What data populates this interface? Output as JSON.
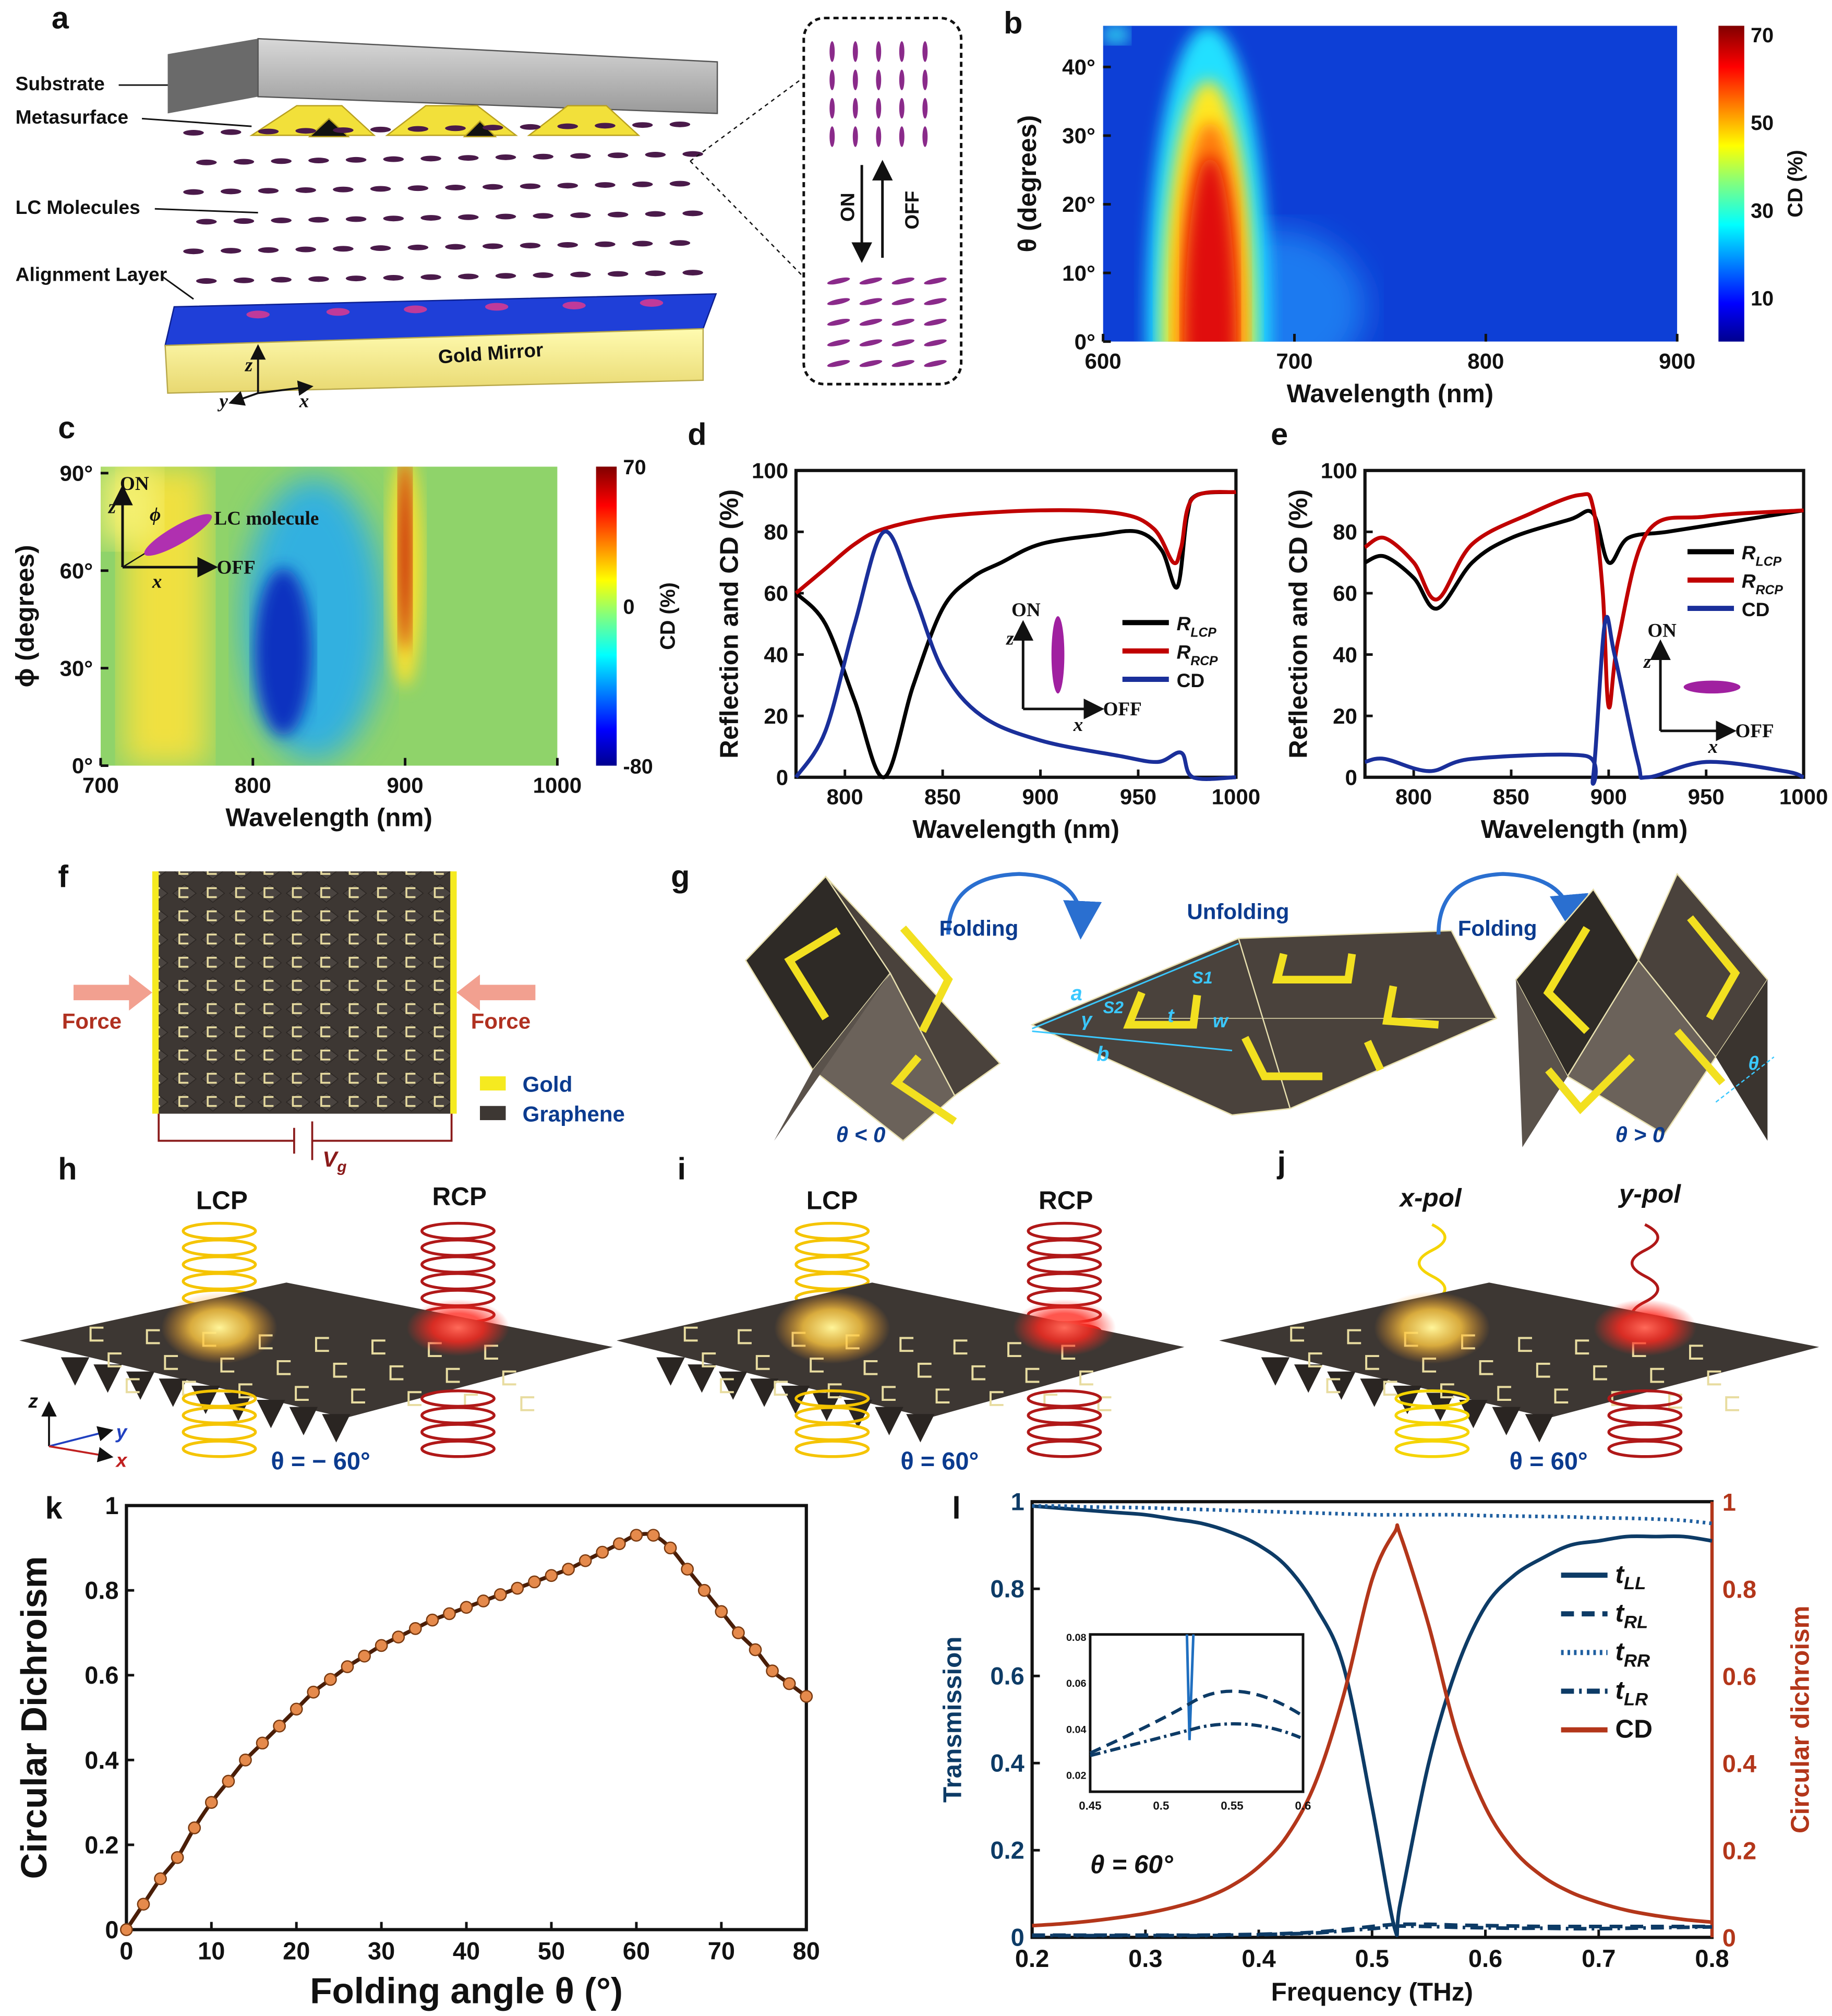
{
  "panel_labels": {
    "a": "a",
    "b": "b",
    "c": "c",
    "d": "d",
    "e": "e",
    "f": "f",
    "g": "g",
    "h": "h",
    "i": "i",
    "j": "j",
    "k": "k",
    "l": "l"
  },
  "panel_a": {
    "substrate": "Substrate",
    "metasurface": "Metasurface",
    "lc_molecules": "LC Molecules",
    "alignment_layer": "Alignment Layer",
    "gold_mirror": "Gold Mirror",
    "on": "ON",
    "off": "OFF",
    "axis_z": "z",
    "axis_y": "y",
    "axis_x": "x"
  },
  "panel_c_inset": {
    "on": "ON",
    "off": "OFF",
    "z": "z",
    "x": "x",
    "phi": "ϕ",
    "molecule": "LC molecule"
  },
  "panel_d_inset": {
    "on": "ON",
    "off": "OFF",
    "z": "z",
    "x": "x"
  },
  "panel_e_inset": {
    "on": "ON",
    "off": "OFF",
    "z": "z",
    "x": "x"
  },
  "panel_f": {
    "force_left": "Force",
    "force_right": "Force",
    "gold": "Gold",
    "graphene": "Graphene",
    "vg": "V",
    "vg_sub": "g"
  },
  "panel_g": {
    "folding_left": "Folding",
    "unfolding": "Unfolding",
    "folding_right": "Folding",
    "theta_neg": "θ < 0",
    "theta_pos": "θ > 0",
    "a": "a",
    "b": "b",
    "s1": "S1",
    "s2": "S2",
    "t": "t",
    "w": "w",
    "gamma": "γ",
    "theta": "θ"
  },
  "panel_h": {
    "lcp": "LCP",
    "rcp": "RCP",
    "theta": "θ = − 60°",
    "z": "z",
    "y": "y",
    "x": "x"
  },
  "panel_i": {
    "lcp": "LCP",
    "rcp": "RCP",
    "theta": "θ = 60°"
  },
  "panel_j": {
    "xpol": "x-pol",
    "ypol": "y-pol",
    "theta": "θ = 60°"
  },
  "colors": {
    "r_lcp": "#000000",
    "r_rcp": "#c00000",
    "cd_blue": "#1a2f9a",
    "k_line": "#4a1e08",
    "k_marker": "#e58a4c",
    "l_blue": "#0d3b66",
    "l_cd": "#b3361a"
  },
  "chart_data": [
    {
      "panel": "b",
      "type": "heatmap",
      "xlabel": "Wavelength (nm)",
      "ylabel": "θ (degrees)",
      "xlim": [
        600,
        900
      ],
      "ylim": [
        0,
        46
      ],
      "xticks": [
        600,
        700,
        800,
        900
      ],
      "xtick_labels": [
        "600",
        "700",
        "800",
        "900"
      ],
      "yticks": [
        0,
        10,
        20,
        30,
        40
      ],
      "ytick_labels": [
        "0°",
        "10°",
        "20°",
        "30°",
        "40°"
      ],
      "colorbar": {
        "label": "CD (%)",
        "range": [
          0,
          72
        ],
        "ticks": [
          10,
          30,
          50,
          70
        ],
        "tick_labels": [
          "10",
          "30",
          "50",
          "70"
        ]
      }
    },
    {
      "panel": "c",
      "type": "heatmap",
      "xlabel": "Wavelength (nm)",
      "ylabel": "ϕ (degrees)",
      "xlim": [
        700,
        1000
      ],
      "ylim": [
        0,
        92
      ],
      "xticks": [
        700,
        800,
        900,
        1000
      ],
      "xtick_labels": [
        "700",
        "800",
        "900",
        "1000"
      ],
      "yticks": [
        0,
        30,
        60,
        90
      ],
      "ytick_labels": [
        "0°",
        "30°",
        "60°",
        "90°"
      ],
      "colorbar": {
        "label": "CD (%)",
        "range": [
          -80,
          70
        ],
        "ticks": [
          -80,
          0,
          70
        ],
        "tick_labels": [
          "-80",
          "0",
          "70"
        ]
      }
    },
    {
      "panel": "d",
      "type": "line",
      "xlabel": "Wavelength (nm)",
      "ylabel": "Reflection and CD (%)",
      "xlim": [
        775,
        1000
      ],
      "ylim": [
        0,
        100
      ],
      "xticks": [
        800,
        850,
        900,
        950,
        1000
      ],
      "xtick_labels": [
        "800",
        "850",
        "900",
        "950",
        "1000"
      ],
      "yticks": [
        0,
        20,
        40,
        60,
        80,
        100
      ],
      "ytick_labels": [
        "0",
        "20",
        "40",
        "60",
        "80",
        "100"
      ],
      "series": [
        {
          "name": "R_LCP",
          "label": "R",
          "sub": "LCP",
          "color": "#000000",
          "x": [
            775,
            790,
            805,
            820,
            835,
            850,
            865,
            880,
            900,
            930,
            950,
            962,
            970,
            975,
            980,
            1000
          ],
          "y": [
            60,
            50,
            25,
            0,
            30,
            55,
            65,
            70,
            76,
            79,
            80,
            74,
            62,
            85,
            92,
            93
          ]
        },
        {
          "name": "R_RCP",
          "label": "R",
          "sub": "RCP",
          "color": "#c00000",
          "x": [
            775,
            790,
            805,
            820,
            850,
            900,
            940,
            958,
            968,
            972,
            978,
            1000
          ],
          "y": [
            60,
            68,
            76,
            81,
            85,
            87,
            86,
            81,
            70,
            75,
            91,
            93
          ]
        },
        {
          "name": "CD",
          "label": "CD",
          "sub": "",
          "color": "#1a2f9a",
          "x": [
            775,
            790,
            805,
            820,
            835,
            850,
            870,
            900,
            940,
            960,
            972,
            978,
            1000
          ],
          "y": [
            0,
            15,
            50,
            80,
            60,
            35,
            20,
            12,
            7,
            5,
            8,
            0,
            0
          ]
        }
      ]
    },
    {
      "panel": "e",
      "type": "line",
      "xlabel": "Wavelength (nm)",
      "ylabel": "Reflection and CD (%)",
      "xlim": [
        775,
        1000
      ],
      "ylim": [
        0,
        100
      ],
      "xticks": [
        800,
        850,
        900,
        950,
        1000
      ],
      "xtick_labels": [
        "800",
        "850",
        "900",
        "950",
        "1000"
      ],
      "yticks": [
        0,
        20,
        40,
        60,
        80,
        100
      ],
      "ytick_labels": [
        "0",
        "20",
        "40",
        "60",
        "80",
        "100"
      ],
      "series": [
        {
          "name": "R_LCP",
          "label": "R",
          "sub": "LCP",
          "color": "#000000",
          "x": [
            775,
            785,
            800,
            812,
            830,
            850,
            880,
            892,
            900,
            910,
            930,
            960,
            1000
          ],
          "y": [
            70,
            72,
            65,
            55,
            70,
            78,
            84,
            86,
            70,
            78,
            80,
            83,
            87
          ]
        },
        {
          "name": "R_RCP",
          "label": "R",
          "sub": "RCP",
          "color": "#c00000",
          "x": [
            775,
            785,
            800,
            812,
            830,
            860,
            885,
            892,
            897,
            900,
            905,
            920,
            950,
            1000
          ],
          "y": [
            75,
            78,
            70,
            58,
            76,
            86,
            92,
            88,
            60,
            23,
            45,
            80,
            85,
            87
          ]
        },
        {
          "name": "CD",
          "label": "CD",
          "sub": "",
          "color": "#1a2f9a",
          "x": [
            775,
            785,
            808,
            830,
            888,
            892,
            898,
            903,
            915,
            920,
            950,
            990,
            1000
          ],
          "y": [
            5,
            6,
            2,
            6,
            7,
            0,
            50,
            40,
            5,
            0,
            5,
            2,
            0
          ]
        }
      ]
    },
    {
      "panel": "k",
      "type": "line",
      "xlabel": "Folding angle θ (°)",
      "ylabel": "Circular Dichroism",
      "xlim": [
        0,
        80
      ],
      "ylim": [
        0,
        1
      ],
      "xticks": [
        0,
        10,
        20,
        30,
        40,
        50,
        60,
        70,
        80
      ],
      "xtick_labels": [
        "0",
        "10",
        "20",
        "30",
        "40",
        "50",
        "60",
        "70",
        "80"
      ],
      "yticks": [
        0,
        0.2,
        0.4,
        0.6,
        0.8,
        1
      ],
      "ytick_labels": [
        "0",
        "0.2",
        "0.4",
        "0.6",
        "0.8",
        "1"
      ],
      "series": [
        {
          "name": "CD",
          "color": "#4a1e08",
          "marker": "#e58a4c",
          "x": [
            0,
            2,
            4,
            6,
            8,
            10,
            12,
            14,
            16,
            18,
            20,
            22,
            24,
            26,
            28,
            30,
            32,
            34,
            36,
            38,
            40,
            42,
            44,
            46,
            48,
            50,
            52,
            54,
            56,
            58,
            60,
            62,
            64,
            66,
            68,
            70,
            72,
            74,
            76,
            78,
            80
          ],
          "y": [
            0,
            0.06,
            0.12,
            0.17,
            0.24,
            0.3,
            0.35,
            0.4,
            0.44,
            0.48,
            0.52,
            0.56,
            0.59,
            0.62,
            0.645,
            0.67,
            0.69,
            0.71,
            0.73,
            0.745,
            0.76,
            0.775,
            0.79,
            0.805,
            0.82,
            0.835,
            0.85,
            0.87,
            0.89,
            0.91,
            0.93,
            0.93,
            0.9,
            0.85,
            0.8,
            0.75,
            0.7,
            0.66,
            0.61,
            0.58,
            0.55
          ]
        }
      ]
    },
    {
      "panel": "l",
      "type": "line",
      "xlabel": "Frequency (THz)",
      "ylabel": "Transmission",
      "y2label": "Circular dichroism",
      "xlim": [
        0.2,
        0.8
      ],
      "ylim": [
        0,
        1
      ],
      "y2lim": [
        0,
        1
      ],
      "xticks": [
        0.2,
        0.3,
        0.4,
        0.5,
        0.6,
        0.7,
        0.8
      ],
      "xtick_labels": [
        "0.2",
        "0.3",
        "0.4",
        "0.5",
        "0.6",
        "0.7",
        "0.8"
      ],
      "yticks": [
        0,
        0.2,
        0.4,
        0.6,
        0.8,
        1
      ],
      "ytick_labels": [
        "0",
        "0.2",
        "0.4",
        "0.6",
        "0.8",
        "1"
      ],
      "y2ticks": [
        0,
        0.2,
        0.4,
        0.6,
        0.8,
        1
      ],
      "y2tick_labels": [
        "0",
        "0.2",
        "0.4",
        "0.6",
        "0.8",
        "1"
      ],
      "annotation": "θ = 60°",
      "x": [
        0.2,
        0.225,
        0.25,
        0.275,
        0.3,
        0.325,
        0.35,
        0.375,
        0.4,
        0.425,
        0.45,
        0.475,
        0.5,
        0.52,
        0.525,
        0.55,
        0.575,
        0.6,
        0.625,
        0.65,
        0.675,
        0.7,
        0.725,
        0.75,
        0.775,
        0.8
      ],
      "series": [
        {
          "name": "tLL",
          "label": "t",
          "sub": "LL",
          "style": "solid",
          "color": "#0d3b66",
          "values": [
            0.99,
            0.985,
            0.98,
            0.975,
            0.97,
            0.96,
            0.95,
            0.93,
            0.9,
            0.85,
            0.76,
            0.62,
            0.3,
            0.02,
            0.08,
            0.4,
            0.62,
            0.76,
            0.83,
            0.87,
            0.9,
            0.91,
            0.92,
            0.92,
            0.92,
            0.91
          ]
        },
        {
          "name": "tRL",
          "label": "t",
          "sub": "RL",
          "style": "dash",
          "color": "#0d3b66",
          "values": [
            0.005,
            0.005,
            0.005,
            0.005,
            0.005,
            0.005,
            0.005,
            0.006,
            0.007,
            0.009,
            0.012,
            0.018,
            0.025,
            0.03,
            0.03,
            0.03,
            0.028,
            0.027,
            0.026,
            0.025,
            0.025,
            0.025,
            0.025,
            0.025,
            0.025,
            0.025
          ]
        },
        {
          "name": "tRR",
          "label": "t",
          "sub": "RR",
          "style": "dot",
          "color": "#1f5fa0",
          "values": [
            0.99,
            0.99,
            0.988,
            0.987,
            0.986,
            0.984,
            0.982,
            0.98,
            0.978,
            0.976,
            0.974,
            0.972,
            0.97,
            0.97,
            0.97,
            0.97,
            0.97,
            0.968,
            0.967,
            0.966,
            0.965,
            0.963,
            0.962,
            0.96,
            0.957,
            0.95
          ]
        },
        {
          "name": "tLR",
          "label": "t",
          "sub": "LR",
          "style": "dashdot",
          "color": "#0d3b66",
          "values": [
            0.004,
            0.004,
            0.004,
            0.004,
            0.004,
            0.004,
            0.004,
            0.005,
            0.006,
            0.008,
            0.01,
            0.015,
            0.02,
            0.025,
            0.026,
            0.025,
            0.023,
            0.022,
            0.021,
            0.021,
            0.02,
            0.02,
            0.021,
            0.022,
            0.023,
            0.024
          ]
        },
        {
          "name": "CD",
          "label": "CD",
          "sub": "",
          "style": "solid",
          "axis": "right",
          "color": "#b3361a",
          "values": [
            0.027,
            0.031,
            0.037,
            0.045,
            0.055,
            0.069,
            0.088,
            0.117,
            0.162,
            0.233,
            0.355,
            0.557,
            0.821,
            0.93,
            0.923,
            0.716,
            0.465,
            0.299,
            0.2,
            0.141,
            0.104,
            0.08,
            0.062,
            0.05,
            0.041,
            0.035
          ]
        }
      ],
      "inset": {
        "xtick_labels": [
          "0.45",
          "0.5",
          "0.55",
          "0.6"
        ],
        "ytick_labels": [
          "0.02",
          "0.04",
          "0.06",
          "0.08"
        ]
      }
    }
  ]
}
